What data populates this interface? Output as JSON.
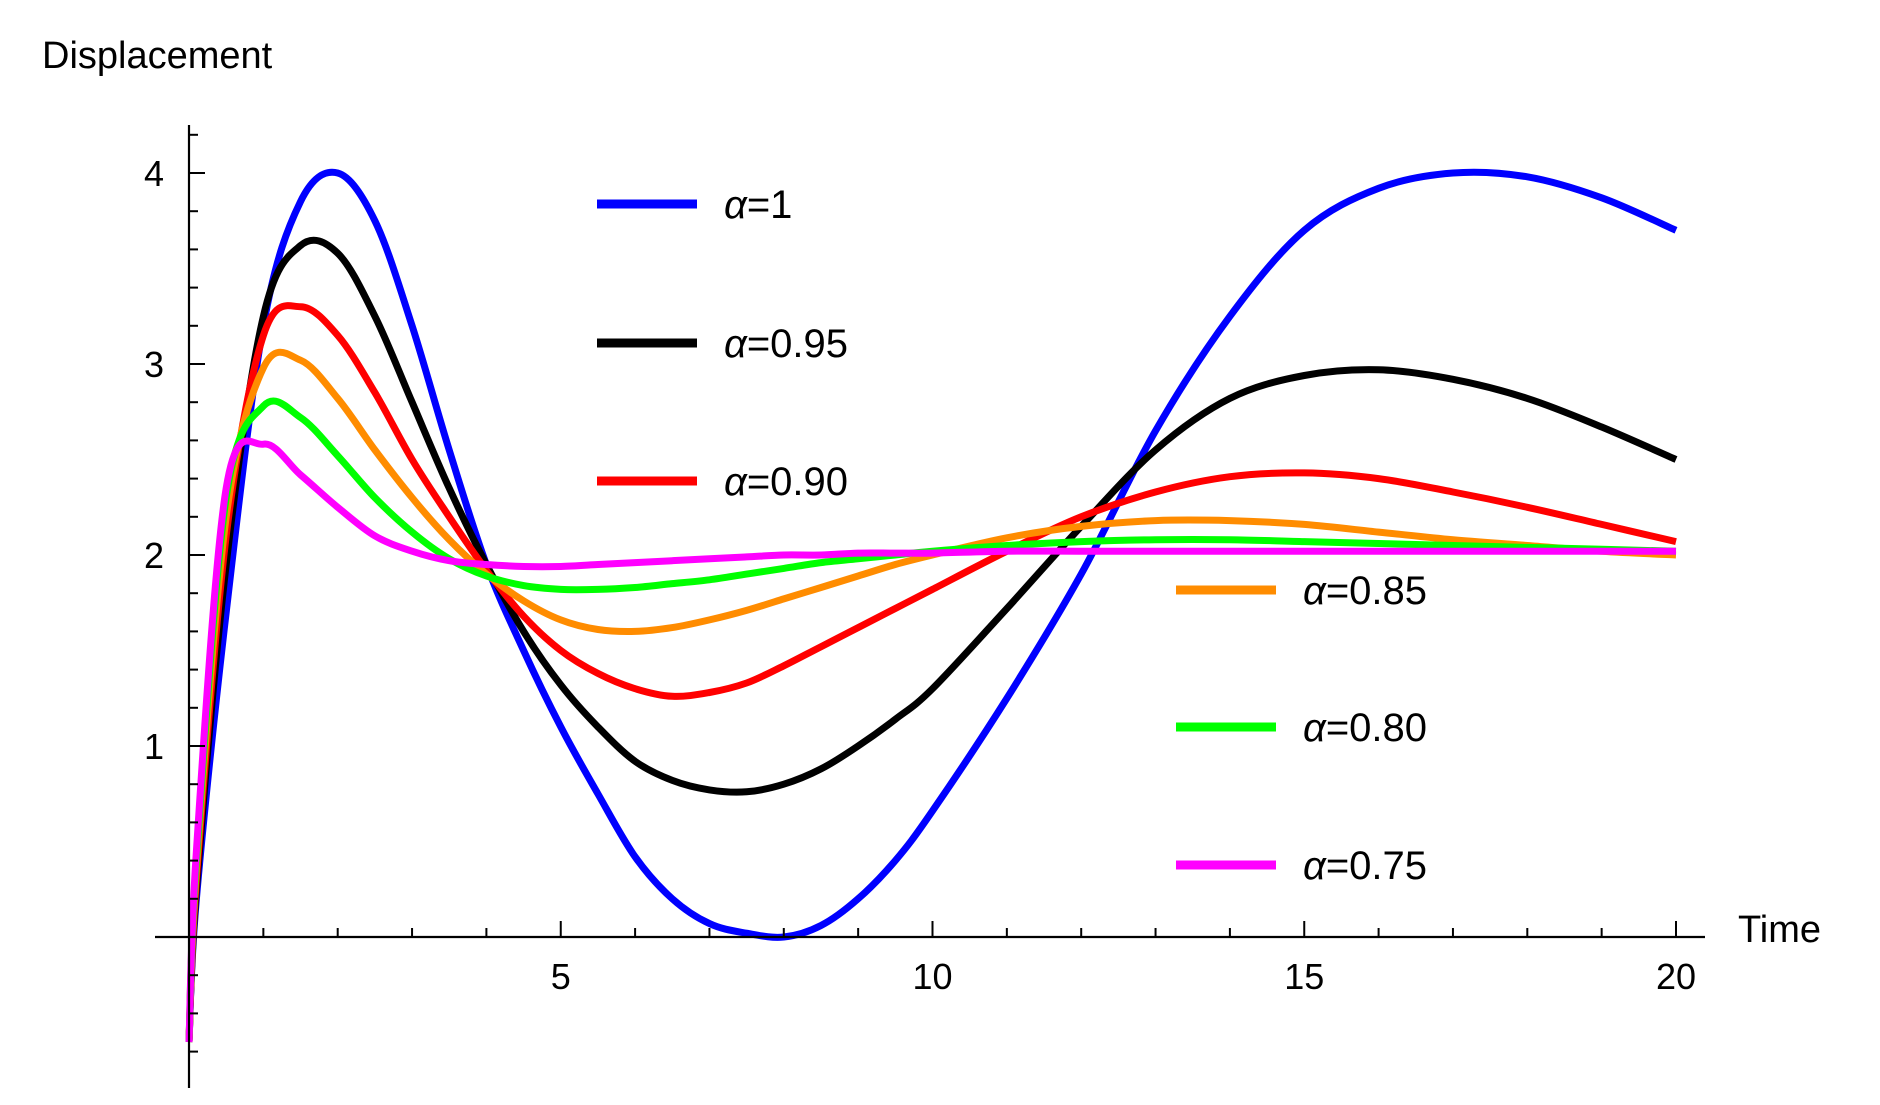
{
  "chart_data": {
    "type": "line",
    "title": "",
    "xlabel": "Time",
    "ylabel": "Displacement",
    "xlim": [
      -0.1,
      20.4
    ],
    "ylim": [
      -0.75,
      4.3
    ],
    "xticks": [
      5,
      10,
      15,
      20
    ],
    "xtick_labels": [
      "5",
      "10",
      "15",
      "20"
    ],
    "yticks": [
      1,
      2,
      3,
      4
    ],
    "ytick_labels": [
      "1",
      "2",
      "3",
      "4"
    ],
    "legend_position": "center (upper pair, lower-right group)",
    "x": [
      0,
      0.1,
      0.5,
      1.0,
      1.5,
      2.0,
      2.5,
      3.0,
      3.5,
      4.0,
      4.5,
      5.0,
      5.5,
      6.0,
      6.5,
      7.0,
      7.5,
      8.0,
      8.5,
      9.0,
      9.5,
      10.0,
      11.0,
      12.0,
      13.0,
      14.0,
      15.0,
      16.0,
      17.0,
      18.0,
      19.0,
      20.0
    ],
    "series": [
      {
        "name": "α=1",
        "label_prefix": "α",
        "label_value": "=1",
        "color": "#0000ff",
        "values": [
          -0.55,
          0.2,
          1.7,
          3.2,
          3.85,
          4.0,
          3.75,
          3.2,
          2.55,
          1.95,
          1.5,
          1.1,
          0.75,
          0.42,
          0.2,
          0.07,
          0.02,
          0.0,
          0.06,
          0.2,
          0.4,
          0.66,
          1.25,
          1.9,
          2.65,
          3.25,
          3.7,
          3.92,
          4.0,
          3.98,
          3.87,
          3.7
        ]
      },
      {
        "name": "α=0.95",
        "label_prefix": "α",
        "label_value": "=0.95",
        "color": "#000000",
        "values": [
          -0.55,
          0.25,
          1.95,
          3.25,
          3.62,
          3.58,
          3.25,
          2.8,
          2.35,
          1.95,
          1.6,
          1.32,
          1.1,
          0.92,
          0.82,
          0.77,
          0.76,
          0.8,
          0.88,
          1.0,
          1.14,
          1.3,
          1.72,
          2.15,
          2.55,
          2.82,
          2.94,
          2.97,
          2.92,
          2.82,
          2.67,
          2.5
        ]
      },
      {
        "name": "α=0.90",
        "label_prefix": "α",
        "label_value": "=0.90",
        "color": "#ff0000",
        "values": [
          -0.55,
          0.3,
          2.1,
          3.15,
          3.3,
          3.15,
          2.85,
          2.5,
          2.2,
          1.92,
          1.68,
          1.5,
          1.38,
          1.3,
          1.26,
          1.28,
          1.33,
          1.42,
          1.52,
          1.62,
          1.72,
          1.82,
          2.02,
          2.2,
          2.33,
          2.41,
          2.43,
          2.4,
          2.33,
          2.25,
          2.16,
          2.07
        ]
      },
      {
        "name": "α=0.85",
        "label_prefix": "α",
        "label_value": "=0.85",
        "color": "#ff8c00",
        "values": [
          -0.55,
          0.35,
          2.2,
          2.98,
          3.02,
          2.82,
          2.55,
          2.3,
          2.08,
          1.9,
          1.76,
          1.66,
          1.61,
          1.6,
          1.62,
          1.66,
          1.71,
          1.77,
          1.83,
          1.89,
          1.95,
          2.0,
          2.09,
          2.15,
          2.18,
          2.18,
          2.16,
          2.12,
          2.08,
          2.05,
          2.02,
          2.0
        ]
      },
      {
        "name": "α=0.80",
        "label_prefix": "α",
        "label_value": "=0.80",
        "color": "#00ff00",
        "values": [
          -0.55,
          0.4,
          2.3,
          2.78,
          2.72,
          2.52,
          2.3,
          2.12,
          1.98,
          1.89,
          1.84,
          1.82,
          1.82,
          1.83,
          1.85,
          1.87,
          1.9,
          1.93,
          1.96,
          1.98,
          2.0,
          2.02,
          2.05,
          2.07,
          2.08,
          2.08,
          2.07,
          2.06,
          2.05,
          2.04,
          2.03,
          2.02
        ]
      },
      {
        "name": "α=0.75",
        "label_prefix": "α",
        "label_value": "=0.75",
        "color": "#ff00ff",
        "values": [
          -0.55,
          0.45,
          2.35,
          2.58,
          2.42,
          2.25,
          2.1,
          2.02,
          1.97,
          1.95,
          1.94,
          1.94,
          1.95,
          1.96,
          1.97,
          1.98,
          1.99,
          2.0,
          2.0,
          2.01,
          2.01,
          2.01,
          2.02,
          2.02,
          2.02,
          2.02,
          2.02,
          2.02,
          2.02,
          2.02,
          2.02,
          2.02
        ]
      }
    ]
  }
}
